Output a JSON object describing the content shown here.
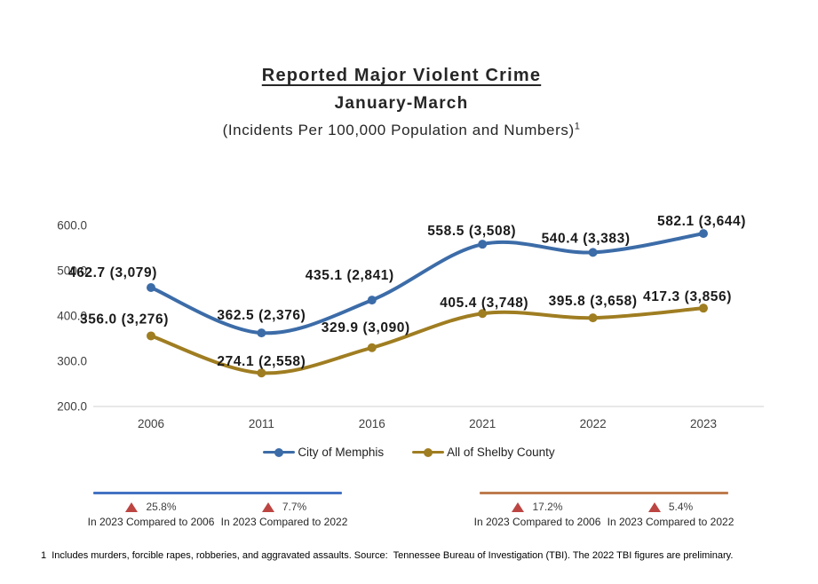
{
  "header": {
    "title": "Reported Major Violent Crime",
    "subtitle": "January-March",
    "units_line": "(Incidents Per 100,000 Population and Numbers)",
    "footnote_ref": "1"
  },
  "chart_data": {
    "type": "line",
    "smooth_lines": true,
    "categories": [
      "2006",
      "2011",
      "2016",
      "2021",
      "2022",
      "2023"
    ],
    "ylim": [
      200,
      600
    ],
    "ytick_labels": [
      "200.0",
      "300.0",
      "400.0",
      "500.0",
      "600.0"
    ],
    "grid": "off",
    "legend_position": "bottom-center",
    "series": [
      {
        "name": "City of Memphis",
        "color": "#3C6CA8",
        "rates": [
          462.7,
          362.5,
          435.1,
          558.5,
          540.4,
          582.1
        ],
        "counts": [
          3079,
          2376,
          2841,
          3508,
          3383,
          3644
        ],
        "point_labels": [
          "462.7 (3,079)",
          "362.5 (2,376)",
          "435.1 (2,841)",
          "558.5  (3,508)",
          "540.4 (3,383)",
          "582.1 (3,644)"
        ],
        "label_offsets": [
          [
            -43,
            -12
          ],
          [
            0,
            -15
          ],
          [
            -25,
            -23
          ],
          [
            -12,
            -10
          ],
          [
            -8,
            -11
          ],
          [
            -2,
            -9
          ]
        ]
      },
      {
        "name": "All of Shelby County",
        "color": "#9F7D21",
        "rates": [
          356.0,
          274.1,
          329.9,
          405.4,
          395.8,
          417.3
        ],
        "counts": [
          3276,
          2558,
          3090,
          3748,
          3658,
          3856
        ],
        "point_labels": [
          "356.0 (3,276)",
          "274.1 (2,558)",
          "329.9 (3,090)",
          "405.4  (3,748)",
          "395.8  (3,658)",
          "417.3 (3,856)"
        ],
        "label_offsets": [
          [
            -30,
            -14
          ],
          [
            0,
            -8
          ],
          [
            -7,
            -18
          ],
          [
            2,
            -7
          ],
          [
            0,
            -14
          ],
          [
            -18,
            -8
          ]
        ]
      }
    ]
  },
  "annotations": [
    {
      "series": "City of Memphis",
      "line_color": "#4472C4",
      "items": [
        {
          "direction": "up",
          "pct": "25.8%",
          "caption": "In 2023 Compared to 2006"
        },
        {
          "direction": "up",
          "pct": "7.7%",
          "caption": "In 2023 Compared to 2022"
        }
      ]
    },
    {
      "series": "All of Shelby County",
      "line_color": "#BE7B4E",
      "items": [
        {
          "direction": "up",
          "pct": "17.2%",
          "caption": "In 2023 Compared to 2006"
        },
        {
          "direction": "up",
          "pct": "5.4%",
          "caption": "In 2023 Compared to 2022"
        }
      ]
    }
  ],
  "footnote": "1  Includes murders, forcible rapes, robberies, and aggravated assaults. Source:  Tennessee Bureau of Investigation (TBI). The 2022 TBI figures are preliminary.",
  "colors": {
    "triangle_up_red": "#BC4542",
    "axis_text": "#404040",
    "axis_line": "#D9D9D9",
    "data_label_text": "#1A1A1A",
    "title_text": "#262626"
  }
}
